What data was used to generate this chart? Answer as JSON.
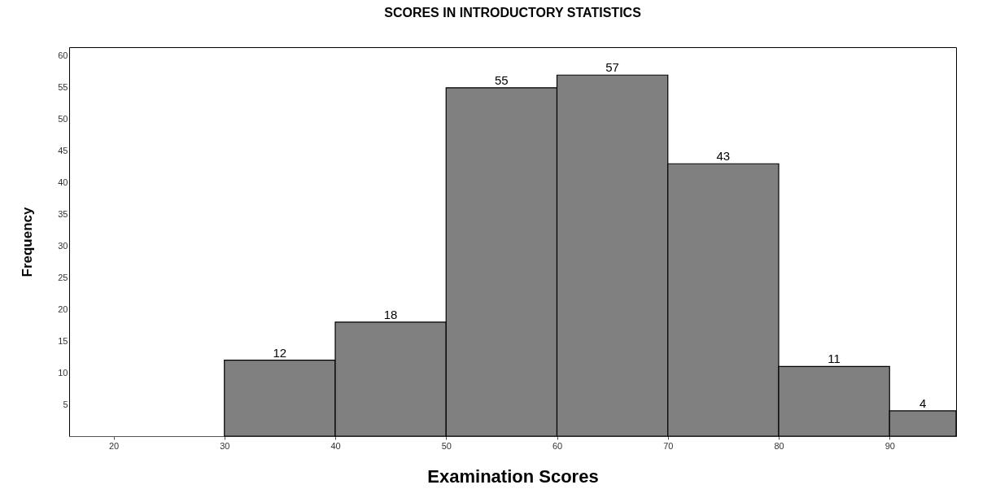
{
  "chart_data": {
    "type": "histogram",
    "title": "SCORES IN INTRODUCTORY STATISTICS",
    "xlabel": "Examination Scores",
    "ylabel": "Frequency",
    "bins": [
      30,
      40,
      50,
      60,
      70,
      80,
      90,
      96
    ],
    "values": [
      12,
      18,
      55,
      57,
      43,
      11,
      4
    ],
    "color": "#808080",
    "xlim": [
      16,
      96
    ],
    "xticks": [
      20,
      30,
      40,
      50,
      60,
      70,
      80,
      90
    ],
    "ylim": [
      0,
      61.4
    ],
    "yticks": [
      5,
      10,
      15,
      20,
      25,
      30,
      35,
      40,
      45,
      50,
      55,
      60
    ],
    "data_labels": true,
    "grid": false
  }
}
